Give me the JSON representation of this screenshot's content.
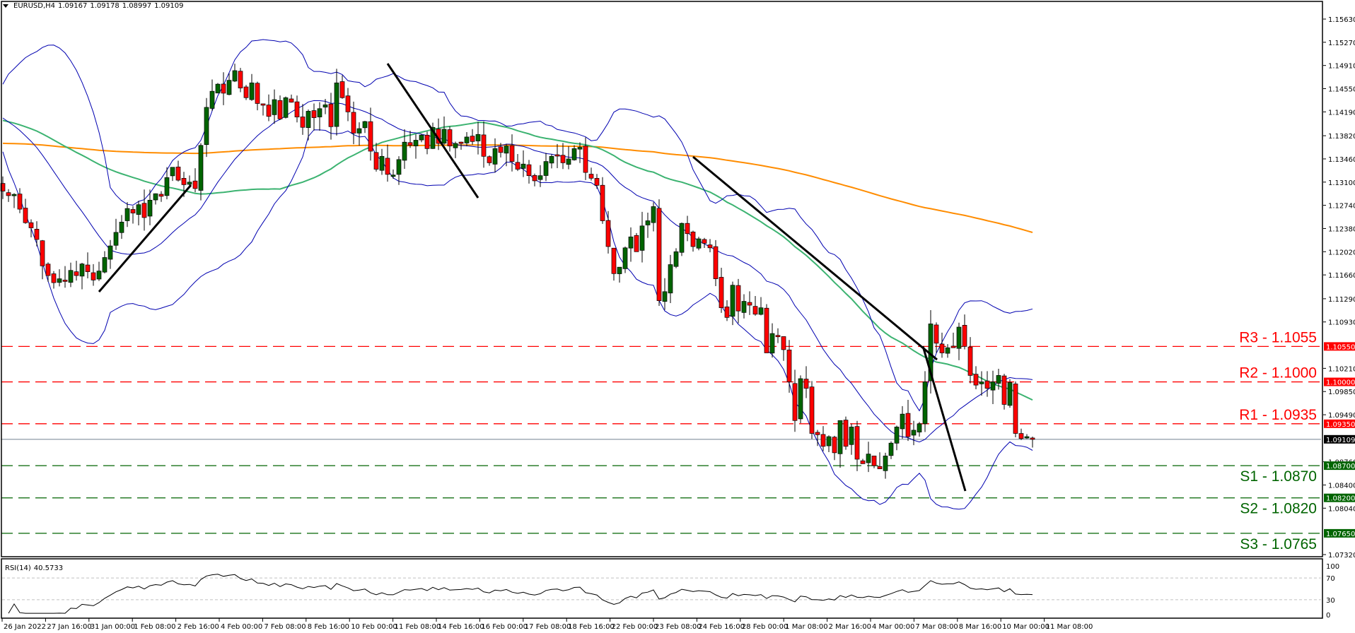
{
  "header": {
    "symbol": "EURUSD,H4",
    "open": "1.09167",
    "high": "1.09178",
    "low": "1.08997",
    "close": "1.09109"
  },
  "rsi_header": {
    "label": "RSI(14)",
    "value": "40.5733"
  },
  "colors": {
    "bull": "#006400",
    "bear": "#ff0000",
    "bollinger": "#0000b0",
    "ma_green": "#3cb371",
    "ma_orange": "#ff8c00",
    "resistance": "#ff0000",
    "support": "#006400",
    "price_line": "#708090",
    "trendline": "#000000"
  },
  "chart_data": [
    {
      "type": "candlestick",
      "title": "EURUSD,H4",
      "xlabel": "",
      "ylabel": "",
      "ylim": [
        1.0712,
        1.1585
      ],
      "y_ticks": [
        "1.15630",
        "1.15270",
        "1.14910",
        "1.14550",
        "1.14190",
        "1.13820",
        "1.13460",
        "1.13100",
        "1.12740",
        "1.12380",
        "1.12020",
        "1.11660",
        "1.11290",
        "1.10930",
        "1.10210",
        "1.09850",
        "1.09490",
        "1.08760",
        "1.08400",
        "1.08040",
        "1.07320"
      ],
      "x_tick_labels": [
        "26 Jan 2022",
        "27 Jan 16:00",
        "31 Jan 00:00",
        "1 Feb 08:00",
        "2 Feb 16:00",
        "4 Feb 00:00",
        "7 Feb 08:00",
        "8 Feb 16:00",
        "10 Feb 00:00",
        "11 Feb 08:00",
        "14 Feb 16:00",
        "16 Feb 00:00",
        "17 Feb 08:00",
        "18 Feb 16:00",
        "22 Feb 00:00",
        "23 Feb 08:00",
        "24 Feb 16:00",
        "28 Feb 00:00",
        "1 Mar 08:00",
        "2 Mar 16:00",
        "4 Mar 00:00",
        "7 Mar 08:00",
        "8 Mar 16:00",
        "10 Mar 00:00",
        "11 Mar 08:00"
      ],
      "closes": [
        1.1296,
        1.1289,
        1.1291,
        1.1268,
        1.1247,
        1.1239,
        1.1221,
        1.118,
        1.1165,
        1.1154,
        1.116,
        1.1156,
        1.1173,
        1.1165,
        1.1183,
        1.1171,
        1.1158,
        1.1172,
        1.1193,
        1.1211,
        1.1232,
        1.1248,
        1.1269,
        1.1262,
        1.1275,
        1.1255,
        1.1282,
        1.1292,
        1.1288,
        1.1317,
        1.1333,
        1.1313,
        1.1306,
        1.131,
        1.13,
        1.1367,
        1.1426,
        1.1451,
        1.1462,
        1.1448,
        1.1468,
        1.1483,
        1.1456,
        1.1441,
        1.1464,
        1.1432,
        1.143,
        1.1412,
        1.1438,
        1.1408,
        1.1441,
        1.1434,
        1.1411,
        1.1395,
        1.142,
        1.141,
        1.1424,
        1.143,
        1.1396,
        1.1464,
        1.1441,
        1.1419,
        1.1386,
        1.1393,
        1.1404,
        1.1358,
        1.133,
        1.135,
        1.1322,
        1.1321,
        1.1345,
        1.1372,
        1.1367,
        1.1375,
        1.1383,
        1.1362,
        1.1395,
        1.137,
        1.1392,
        1.1366,
        1.137,
        1.1372,
        1.138,
        1.1373,
        1.1384,
        1.135,
        1.134,
        1.1362,
        1.1356,
        1.1366,
        1.1342,
        1.133,
        1.1338,
        1.132,
        1.1312,
        1.132,
        1.1342,
        1.135,
        1.1352,
        1.134,
        1.1346,
        1.1362,
        1.1364,
        1.1325,
        1.1316,
        1.1305,
        1.125,
        1.121,
        1.1168,
        1.1178,
        1.1208,
        1.1225,
        1.1202,
        1.1242,
        1.125,
        1.1272,
        1.1126,
        1.114,
        1.1182,
        1.1202,
        1.1246,
        1.123,
        1.121,
        1.1222,
        1.1215,
        1.1208,
        1.116,
        1.1115,
        1.11,
        1.115,
        1.111,
        1.1125,
        1.1119,
        1.1105,
        1.1115,
        1.1045,
        1.1075,
        1.107,
        1.105,
        1.1,
        1.094,
        1.1005,
        1.099,
        1.092,
        1.0918,
        1.09,
        1.0915,
        1.089,
        1.094,
        1.09,
        1.093,
        1.088,
        1.0873,
        1.0888,
        1.087,
        1.0865,
        1.0885,
        1.0905,
        1.093,
        1.095,
        1.0915,
        1.0925,
        1.0935,
        1.1,
        1.109,
        1.106,
        1.1045,
        1.1053,
        1.1053,
        1.1085,
        1.1055,
        1.101,
        1.0995,
        1.1,
        1.099,
        1.1,
        1.101,
        1.0965,
        1.0999,
        1.092,
        1.0912,
        1.0915,
        1.0911
      ]
    },
    {
      "type": "line",
      "title": "RSI(14)",
      "ylim": [
        0,
        100
      ],
      "y_ticks": [
        "100",
        "70",
        "30",
        "0"
      ],
      "levels": [
        70,
        30
      ],
      "current": 40.5733
    }
  ],
  "levels": [
    {
      "name": "R3",
      "price": 1.1055,
      "label": "R3 - 1.1055",
      "tag": "1.10550",
      "kind": "resistance"
    },
    {
      "name": "R2",
      "price": 1.1,
      "label": "R2 - 1.1000",
      "tag": "1.10000",
      "kind": "resistance"
    },
    {
      "name": "R1",
      "price": 1.0935,
      "label": "R1 - 1.0935",
      "tag": "1.09350",
      "kind": "resistance"
    },
    {
      "name": "S1",
      "price": 1.087,
      "label": "S1 - 1.0870",
      "tag": "1.08700",
      "kind": "support"
    },
    {
      "name": "S2",
      "price": 1.082,
      "label": "S2 - 1.0820",
      "tag": "1.08200",
      "kind": "support"
    },
    {
      "name": "S3",
      "price": 1.0765,
      "label": "S3 - 1.0765",
      "tag": "1.07650",
      "kind": "support"
    }
  ],
  "current_price": {
    "value": 1.09109,
    "tag": "1.09109"
  }
}
